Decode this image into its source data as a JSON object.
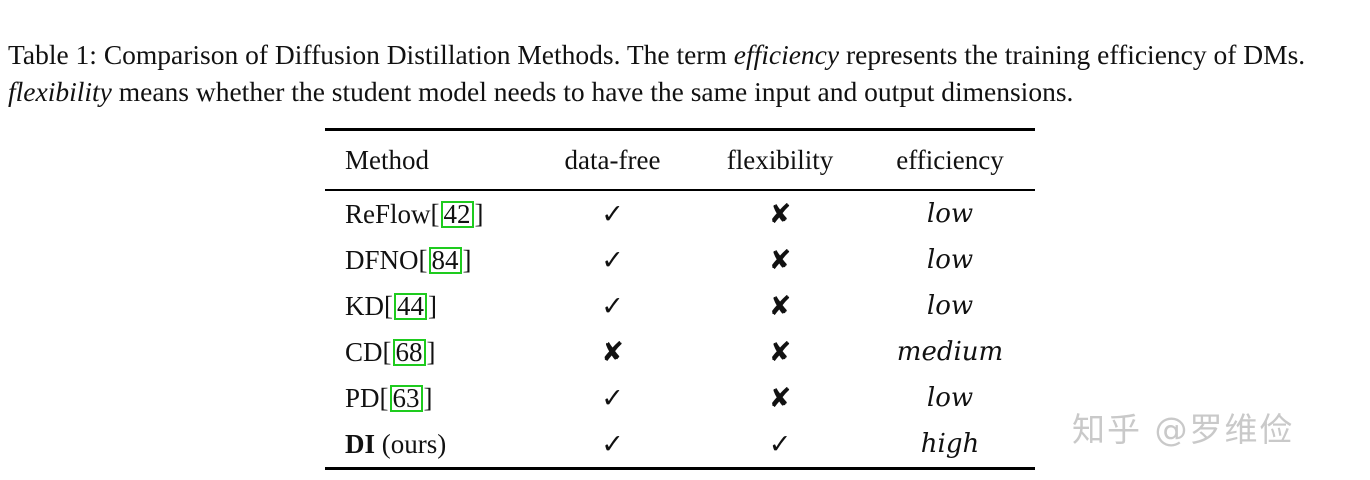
{
  "caption": {
    "part1": "Table 1: Comparison of Diffusion Distillation Methods. The term ",
    "italic1": "efficiency",
    "part2": " represents the training efficiency of DMs. ",
    "italic2": "flexibility",
    "part3": " means whether the student model needs to have the same input and output dimensions."
  },
  "table": {
    "headers": [
      "Method",
      "data-free",
      "flexibility",
      "efficiency"
    ],
    "rows": [
      {
        "method_bold": "",
        "method": "ReFlow",
        "bracket_open": "[",
        "cite": "42",
        "bracket_close": "]",
        "data_free": "✓",
        "flexibility": "✘",
        "efficiency": "low"
      },
      {
        "method_bold": "",
        "method": "DFNO",
        "bracket_open": "[",
        "cite": "84",
        "bracket_close": "]",
        "data_free": "✓",
        "flexibility": "✘",
        "efficiency": "low"
      },
      {
        "method_bold": "",
        "method": "KD",
        "bracket_open": "[",
        "cite": "44",
        "bracket_close": "]",
        "data_free": "✓",
        "flexibility": "✘",
        "efficiency": "low"
      },
      {
        "method_bold": "",
        "method": "CD",
        "bracket_open": "[",
        "cite": "68",
        "bracket_close": "]",
        "data_free": "✘",
        "flexibility": "✘",
        "efficiency": "medium"
      },
      {
        "method_bold": "",
        "method": "PD",
        "bracket_open": "[",
        "cite": "63",
        "bracket_close": "]",
        "data_free": "✓",
        "flexibility": "✘",
        "efficiency": "low"
      },
      {
        "method_bold": "DI",
        "method": " (ours)",
        "bracket_open": "",
        "cite": "",
        "bracket_close": "",
        "data_free": "✓",
        "flexibility": "✓",
        "efficiency": "high"
      }
    ]
  },
  "watermark": "知乎 @罗维俭",
  "colors": {
    "citation_box": "#1ecb1e",
    "watermark": "#c9c9c9"
  }
}
